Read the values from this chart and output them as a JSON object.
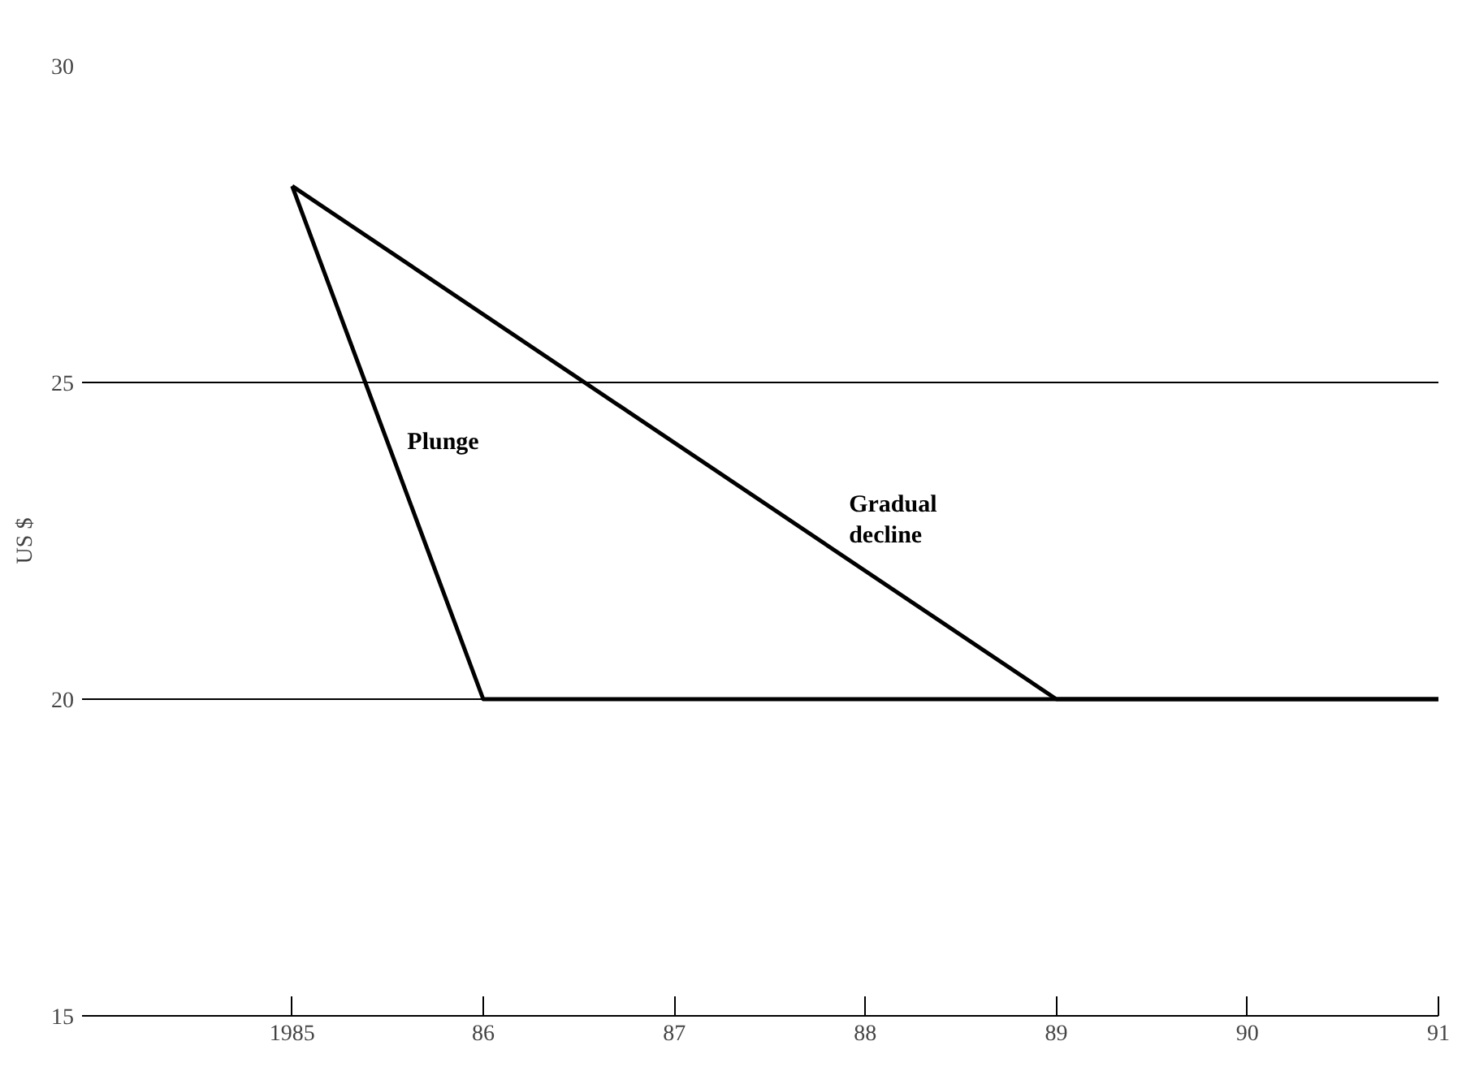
{
  "chart_data": {
    "type": "line",
    "ylabel": "US $",
    "series": [
      {
        "name": "Plunge",
        "color": "#000000",
        "x": [
          1985,
          1986,
          1991
        ],
        "values": [
          28.1,
          20,
          20
        ]
      },
      {
        "name": "Gradual decline",
        "color": "#000000",
        "x": [
          1985,
          1989,
          1991
        ],
        "values": [
          28.1,
          20,
          20
        ]
      }
    ],
    "xlim": [
      1983.9,
      1991
    ],
    "ylim": [
      15,
      30
    ],
    "xticks": [
      1985,
      {
        "value": 1986,
        "label": "86"
      },
      {
        "value": 1987,
        "label": "87"
      },
      {
        "value": 1988,
        "label": "88"
      },
      {
        "value": 1989,
        "label": "89"
      },
      {
        "value": 1990,
        "label": "90"
      },
      {
        "value": 1991,
        "label": "91"
      }
    ],
    "yticks": [
      15,
      20,
      25,
      30
    ],
    "grid": "y",
    "marker": "none",
    "line_style": "solid"
  }
}
